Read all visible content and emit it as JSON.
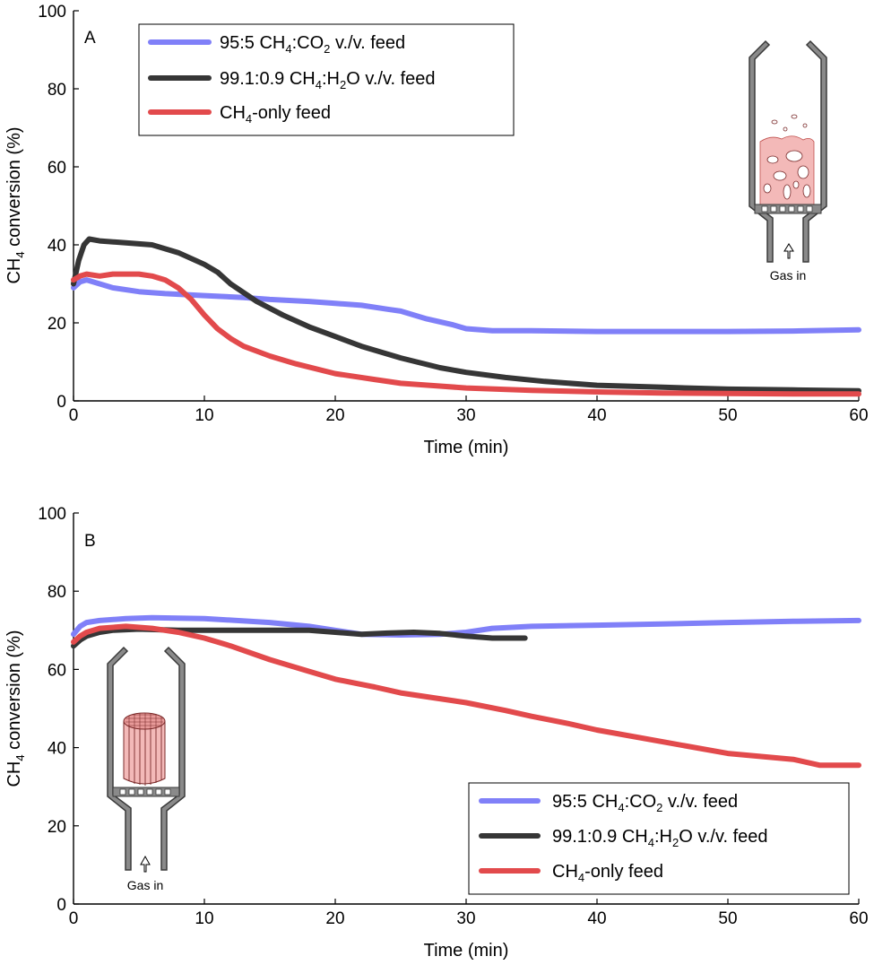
{
  "chart_data": [
    {
      "panel": "A",
      "type": "line",
      "xlabel": "Time (min)",
      "ylabel": "CH4 conversion (%)",
      "xlim": [
        0,
        60
      ],
      "ylim": [
        0,
        100
      ],
      "xticks": [
        0,
        10,
        20,
        30,
        40,
        50,
        60
      ],
      "yticks": [
        0,
        20,
        40,
        60,
        80,
        100
      ],
      "grid": false,
      "legend_position": "top-left",
      "inset": {
        "kind": "fluidized-bed reactor",
        "label": "Gas in"
      },
      "series": [
        {
          "name": "95:5 CH4:CO2 v./v. feed",
          "color": "#8080f8",
          "x": [
            0,
            0.5,
            1,
            2,
            3,
            5,
            7,
            10,
            13,
            15,
            18,
            20,
            22,
            24,
            25,
            27,
            29,
            30,
            32,
            35,
            40,
            45,
            50,
            55,
            60
          ],
          "y": [
            29,
            30.5,
            31,
            30,
            29,
            28,
            27.5,
            27,
            26.5,
            26,
            25.5,
            25,
            24.5,
            23.5,
            23,
            21,
            19.5,
            18.5,
            18,
            18,
            17.8,
            17.8,
            17.8,
            17.9,
            18.2
          ]
        },
        {
          "name": "99.1:0.9 CH4:H2O v./v. feed",
          "color": "#363636",
          "x": [
            0,
            0.4,
            0.8,
            1.2,
            2,
            4,
            6,
            8,
            10,
            11,
            12,
            14,
            16,
            18,
            20,
            22,
            25,
            28,
            30,
            33,
            36,
            40,
            45,
            50,
            55,
            60
          ],
          "y": [
            30,
            36,
            40,
            41.5,
            41,
            40.5,
            40,
            38,
            35,
            33,
            30,
            25.5,
            22,
            19,
            16.5,
            14,
            11,
            8.5,
            7.3,
            6,
            5,
            4,
            3.5,
            3,
            2.8,
            2.6
          ]
        },
        {
          "name": "CH4-only feed",
          "color": "#e24a4c",
          "x": [
            0,
            0.5,
            1,
            2,
            3,
            5,
            6,
            7,
            8,
            9,
            10,
            11,
            12,
            13,
            15,
            17,
            20,
            23,
            25,
            28,
            30,
            35,
            40,
            45,
            50,
            55,
            60
          ],
          "y": [
            31,
            32,
            32.5,
            32,
            32.5,
            32.5,
            32,
            31,
            29,
            26,
            22,
            18.5,
            16,
            14,
            11.5,
            9.5,
            7,
            5.5,
            4.5,
            3.8,
            3.3,
            2.7,
            2.3,
            2,
            1.9,
            1.8,
            1.8
          ]
        }
      ]
    },
    {
      "panel": "B",
      "type": "line",
      "xlabel": "Time (min)",
      "ylabel": "CH4 conversion (%)",
      "xlim": [
        0,
        60
      ],
      "ylim": [
        0,
        100
      ],
      "xticks": [
        0,
        10,
        20,
        30,
        40,
        50,
        60
      ],
      "yticks": [
        0,
        20,
        40,
        60,
        80,
        100
      ],
      "grid": false,
      "legend_position": "bottom-right",
      "inset": {
        "kind": "fixed-bed monolith reactor",
        "label": "Gas in"
      },
      "series": [
        {
          "name": "95:5 CH4:CO2 v./v. feed",
          "color": "#8080f8",
          "x": [
            0,
            0.5,
            1,
            2,
            4,
            6,
            10,
            15,
            18,
            20,
            22,
            25,
            28,
            30,
            32,
            35,
            40,
            45,
            50,
            55,
            60
          ],
          "y": [
            69,
            71,
            72,
            72.5,
            73,
            73.2,
            73,
            72,
            71,
            70,
            69,
            68.8,
            69,
            69.5,
            70.5,
            71,
            71.3,
            71.6,
            72,
            72.3,
            72.5
          ]
        },
        {
          "name": "99.1:0.9 CH4:H2O v./v. feed",
          "color": "#363636",
          "x": [
            0,
            0.5,
            1,
            2,
            3,
            5,
            8,
            10,
            15,
            18,
            20,
            22,
            24,
            26,
            28,
            30,
            32,
            34.5
          ],
          "y": [
            66,
            67.5,
            68.5,
            69.5,
            70,
            70.3,
            70,
            70,
            70,
            70,
            69.5,
            69,
            69.3,
            69.5,
            69.2,
            68.5,
            68,
            68
          ]
        },
        {
          "name": "CH4-only feed",
          "color": "#e24a4c",
          "x": [
            0,
            0.5,
            1,
            2,
            4,
            6,
            8,
            10,
            12,
            15,
            18,
            20,
            23,
            25,
            28,
            30,
            33,
            35,
            38,
            40,
            45,
            50,
            55,
            57,
            60
          ],
          "y": [
            67,
            68.5,
            69.5,
            70.5,
            71,
            70.5,
            69.5,
            68,
            66,
            62.5,
            59.5,
            57.5,
            55.5,
            54,
            52.5,
            51.5,
            49.5,
            48,
            46,
            44.5,
            41.5,
            38.5,
            37,
            35.5,
            35.5
          ]
        }
      ]
    }
  ]
}
